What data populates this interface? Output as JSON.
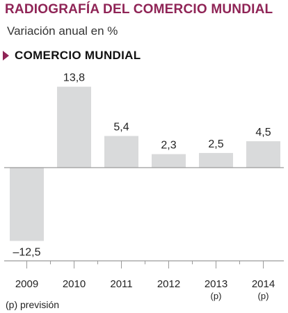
{
  "header": {
    "title": "RADIOGRAFÍA DEL COMERCIO MUNDIAL",
    "subtitle": "Variación anual en %",
    "section_label": "COMERCIO MUNDIAL"
  },
  "footnote": "(p)  previsión",
  "colors": {
    "accent": "#8f2456",
    "bar": "#d9dadb",
    "axis": "#9a9a9a"
  },
  "chart_data": {
    "type": "bar",
    "categories": [
      "2009",
      "2010",
      "2011",
      "2012",
      "2013",
      "2014"
    ],
    "category_sublabels": [
      "",
      "",
      "",
      "",
      "(p)",
      "(p)"
    ],
    "values": [
      -12.5,
      13.8,
      5.4,
      2.3,
      2.5,
      4.5
    ],
    "value_labels": [
      "–12,5",
      "13,8",
      "5,4",
      "2,3",
      "2,5",
      "4,5"
    ],
    "title": "COMERCIO MUNDIAL",
    "xlabel": "",
    "ylabel": "Variación anual en %",
    "ylim": [
      -12.5,
      13.8
    ],
    "grid": false,
    "legend": "none"
  }
}
